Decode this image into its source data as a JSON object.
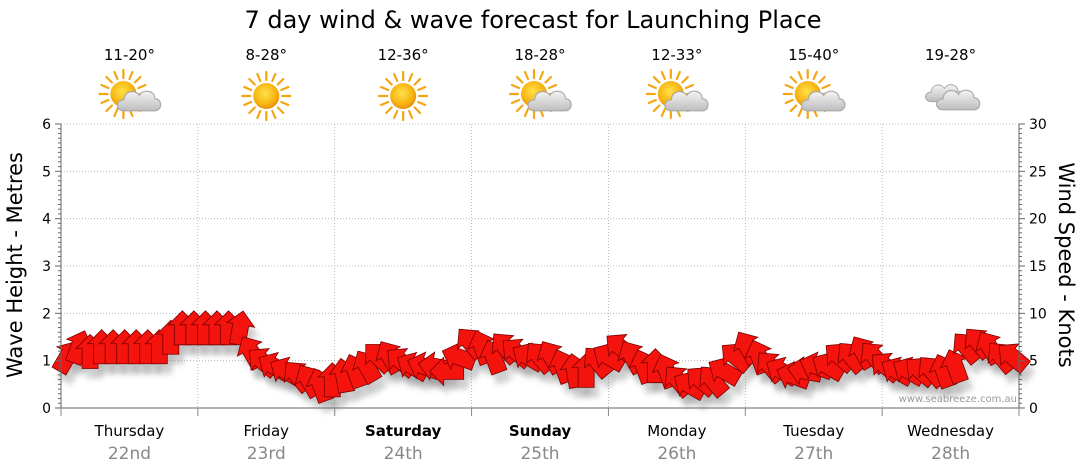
{
  "chart_data": {
    "type": "wind-wave-forecast",
    "title": "7 day wind & wave forecast for Launching Place",
    "ylabel_left": "Wave Height - Metres",
    "ylabel_right": "Wind Speed - Knots",
    "ylim_left": [
      0,
      6
    ],
    "yticks_left": [
      "0",
      "1",
      "2",
      "3",
      "4",
      "5",
      "6"
    ],
    "ylim_right": [
      0,
      30
    ],
    "yticks_right": [
      "0",
      "5",
      "10",
      "15",
      "20",
      "25",
      "30"
    ],
    "grid": true,
    "credit": "www.seabreeze.com.au",
    "days": [
      {
        "day": "Thursday",
        "date": "22nd",
        "temp": "11-20°",
        "weather": "partly-cloudy-icon",
        "bold": false
      },
      {
        "day": "Friday",
        "date": "23rd",
        "temp": "8-28°",
        "weather": "sunny-icon",
        "bold": false
      },
      {
        "day": "Saturday",
        "date": "24th",
        "temp": "12-36°",
        "weather": "sunny-icon",
        "bold": true
      },
      {
        "day": "Sunday",
        "date": "25th",
        "temp": "18-28°",
        "weather": "partly-cloudy-icon",
        "bold": true
      },
      {
        "day": "Monday",
        "date": "26th",
        "temp": "12-33°",
        "weather": "partly-cloudy-icon",
        "bold": false
      },
      {
        "day": "Tuesday",
        "date": "27th",
        "temp": "15-40°",
        "weather": "partly-cloudy-icon",
        "bold": false
      },
      {
        "day": "Wednesday",
        "date": "28th",
        "temp": "19-28°",
        "weather": "cloudy-icon",
        "bold": false
      }
    ],
    "wind_series": {
      "units": "knots",
      "values": [
        6,
        7,
        6.5,
        7,
        7,
        7,
        7,
        7,
        7,
        8,
        9,
        9,
        9,
        9,
        9,
        9,
        6.5,
        5.5,
        5,
        4.5,
        4,
        3.5,
        3,
        3.5,
        4,
        4.5,
        5,
        6,
        6,
        5.5,
        5,
        5,
        5,
        4.5,
        6,
        7.5,
        7,
        6,
        7,
        6.5,
        6,
        6,
        6,
        5,
        4.5,
        4.5,
        5.5,
        6,
        7,
        6,
        5,
        5,
        4.5,
        3.5,
        3,
        3.5,
        3.5,
        4.5,
        6,
        7,
        6,
        5,
        4.5,
        4,
        4.5,
        5,
        5,
        6,
        6,
        6.5,
        6,
        5,
        4.5,
        4.5,
        4.5,
        4.5,
        4.5,
        5,
        7,
        7.5,
        7,
        6,
        6
      ],
      "directions_deg": [
        30,
        20,
        0,
        0,
        0,
        0,
        0,
        0,
        0,
        0,
        0,
        0,
        0,
        0,
        0,
        10,
        -30,
        -50,
        -60,
        -60,
        -40,
        -30,
        -20,
        0,
        -10,
        -20,
        -30,
        -45,
        -30,
        -50,
        -60,
        -70,
        -80,
        -90,
        -70,
        -40,
        -20,
        -20,
        -40,
        -50,
        -60,
        -40,
        -30,
        -20,
        -10,
        0,
        -40,
        -60,
        -50,
        -30,
        -20,
        0,
        -20,
        -40,
        -60,
        -50,
        -40,
        -60,
        -50,
        -30,
        -20,
        -40,
        -60,
        -70,
        -80,
        -70,
        -60,
        -50,
        -40,
        -30,
        -40,
        -50,
        -60,
        -60,
        -50,
        -40,
        -20,
        -20,
        -40,
        -40,
        -30,
        -40,
        -50
      ]
    }
  }
}
